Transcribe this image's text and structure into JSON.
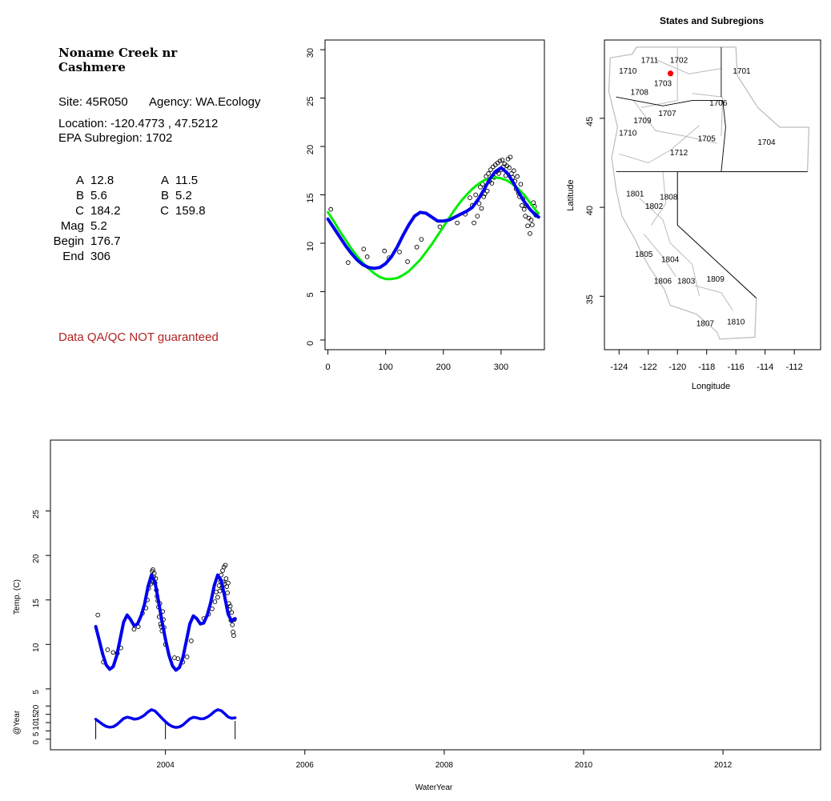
{
  "site": {
    "title_line1": "Noname Creek nr",
    "title_line2": "Cashmere",
    "site_text": "Site: 45R050",
    "agency_text": "Agency: WA.Ecology",
    "location_text": "Location: -120.4773 , 47.5212",
    "subregion_text": "EPA Subregion: 1702",
    "warning": "Data QA/QC NOT guaranteed"
  },
  "params": {
    "left": [
      {
        "label": "A",
        "value": "12.8"
      },
      {
        "label": "B",
        "value": "5.6"
      },
      {
        "label": "C",
        "value": "184.2"
      },
      {
        "label": "Mag",
        "value": "5.2"
      },
      {
        "label": "Begin",
        "value": "176.7"
      },
      {
        "label": "End",
        "value": "306"
      }
    ],
    "right": [
      {
        "label": "A",
        "value": "11.5"
      },
      {
        "label": "B",
        "value": "5.2"
      },
      {
        "label": "C",
        "value": "159.8"
      }
    ]
  },
  "colors": {
    "sine_fit": "#00ee00",
    "smooth_fit": "#0000ee",
    "points": "#000000",
    "site_marker": "#ff0000",
    "boundary": "#bbbbbb",
    "warning": "#b22222"
  },
  "map": {
    "title": "States and Subregions",
    "xlabel": "Longitude",
    "ylabel": "Latitude",
    "xticks": [
      "-124",
      "-122",
      "-120",
      "-118",
      "-116",
      "-114",
      "-112"
    ],
    "yticks": [
      "35",
      "40",
      "45"
    ],
    "regions": [
      {
        "code": "1711",
        "lon": -121.9,
        "lat": 48.3
      },
      {
        "code": "1702",
        "lon": -119.9,
        "lat": 48.3
      },
      {
        "code": "1710",
        "lon": -123.4,
        "lat": 47.7
      },
      {
        "code": "1701",
        "lon": -115.6,
        "lat": 47.7
      },
      {
        "code": "1703",
        "lon": -121.0,
        "lat": 47.0
      },
      {
        "code": "1708",
        "lon": -122.6,
        "lat": 46.5
      },
      {
        "code": "1706",
        "lon": -117.2,
        "lat": 45.9
      },
      {
        "code": "1707",
        "lon": -120.7,
        "lat": 45.3
      },
      {
        "code": "1709",
        "lon": -122.4,
        "lat": 44.9
      },
      {
        "code": "1710",
        "lon": -123.4,
        "lat": 44.2
      },
      {
        "code": "1705",
        "lon": -118.0,
        "lat": 43.9
      },
      {
        "code": "1704",
        "lon": -113.9,
        "lat": 43.7
      },
      {
        "code": "1712",
        "lon": -119.9,
        "lat": 43.1
      },
      {
        "code": "1801",
        "lon": -122.9,
        "lat": 40.8
      },
      {
        "code": "1808",
        "lon": -120.6,
        "lat": 40.6
      },
      {
        "code": "1802",
        "lon": -121.6,
        "lat": 40.1
      },
      {
        "code": "1805",
        "lon": -122.3,
        "lat": 37.4
      },
      {
        "code": "1804",
        "lon": -120.5,
        "lat": 37.1
      },
      {
        "code": "1806",
        "lon": -121.0,
        "lat": 35.9
      },
      {
        "code": "1803",
        "lon": -119.4,
        "lat": 35.9
      },
      {
        "code": "1809",
        "lon": -117.4,
        "lat": 36.0
      },
      {
        "code": "1810",
        "lon": -116.0,
        "lat": 33.6
      },
      {
        "code": "1807",
        "lon": -118.1,
        "lat": 33.5
      }
    ],
    "site": {
      "lon": -120.4773,
      "lat": 47.5212
    }
  },
  "chart_data": [
    {
      "type": "scatter",
      "title": "",
      "xlabel": "",
      "ylabel": "",
      "xlim": [
        -5,
        375
      ],
      "ylim": [
        -1,
        31
      ],
      "xticks": [
        "0",
        "100",
        "200",
        "300"
      ],
      "yticks": [
        "0",
        "5",
        "10",
        "15",
        "20",
        "25",
        "30"
      ],
      "points": {
        "x": [
          5,
          35,
          62,
          68,
          98,
          106,
          124,
          138,
          154,
          162,
          194,
          224,
          238,
          246,
          250,
          253,
          256,
          259,
          262,
          264,
          266,
          268,
          270,
          272,
          274,
          276,
          278,
          280,
          282,
          284,
          286,
          288,
          290,
          292,
          294,
          296,
          298,
          300,
          302,
          304,
          306,
          308,
          310,
          312,
          314,
          316,
          318,
          320,
          322,
          324,
          326,
          328,
          330,
          332,
          334,
          336,
          338,
          340,
          342,
          344,
          346,
          348,
          350,
          352,
          354,
          356,
          358,
          360,
          362
        ],
        "y": [
          13.5,
          8.0,
          9.4,
          8.6,
          9.2,
          8.5,
          9.1,
          8.1,
          9.6,
          10.4,
          11.7,
          12.1,
          13.0,
          14.7,
          13.9,
          12.1,
          15.0,
          12.8,
          14.1,
          15.8,
          13.6,
          16.1,
          14.8,
          15.1,
          16.9,
          15.4,
          17.2,
          16.4,
          17.6,
          16.2,
          17.9,
          16.8,
          18.1,
          17.4,
          18.3,
          17.2,
          18.5,
          17.6,
          18.6,
          17.9,
          18.2,
          17.0,
          18.0,
          18.7,
          17.8,
          18.9,
          17.2,
          16.8,
          17.5,
          16.4,
          15.6,
          16.9,
          15.2,
          14.8,
          16.1,
          13.9,
          14.6,
          13.5,
          12.8,
          13.9,
          11.8,
          12.6,
          11.0,
          12.4,
          11.9,
          14.2,
          13.8,
          12.9,
          13.1
        ]
      },
      "series": [
        {
          "name": "",
          "color": "#00ee00",
          "x": [
            0,
            10,
            20,
            30,
            40,
            50,
            60,
            70,
            80,
            90,
            100,
            110,
            120,
            130,
            140,
            150,
            160,
            170,
            180,
            190,
            200,
            210,
            220,
            230,
            240,
            250,
            260,
            270,
            280,
            290,
            300,
            310,
            320,
            330,
            340,
            350,
            360,
            365
          ],
          "y": [
            13.2,
            12.3,
            11.3,
            10.4,
            9.5,
            8.7,
            8.0,
            7.4,
            6.9,
            6.5,
            6.3,
            6.3,
            6.4,
            6.7,
            7.1,
            7.7,
            8.3,
            9.1,
            9.9,
            10.8,
            11.7,
            12.6,
            13.5,
            14.3,
            15.0,
            15.6,
            16.1,
            16.5,
            16.7,
            16.8,
            16.7,
            16.5,
            16.1,
            15.6,
            15.0,
            14.2,
            13.4,
            13.1
          ]
        },
        {
          "name": "",
          "color": "#0000ee",
          "x": [
            0,
            10,
            20,
            30,
            40,
            50,
            60,
            70,
            80,
            90,
            100,
            110,
            120,
            130,
            140,
            150,
            160,
            170,
            180,
            190,
            200,
            210,
            220,
            230,
            240,
            250,
            260,
            270,
            280,
            290,
            300,
            310,
            320,
            330,
            340,
            350,
            360,
            365
          ],
          "y": [
            12.5,
            11.6,
            10.7,
            9.8,
            9.0,
            8.3,
            7.8,
            7.5,
            7.4,
            7.5,
            7.9,
            8.6,
            9.6,
            10.8,
            11.9,
            12.8,
            13.2,
            13.1,
            12.7,
            12.3,
            12.3,
            12.4,
            12.7,
            13.0,
            13.3,
            13.7,
            14.5,
            15.5,
            16.6,
            17.4,
            17.8,
            17.3,
            16.4,
            15.3,
            14.3,
            13.5,
            12.9,
            12.7
          ]
        }
      ]
    },
    {
      "type": "scatter",
      "title": "",
      "xlabel": "WaterYear",
      "ylabel": "Temp. (C)",
      "xlim": [
        2002.35,
        2013.4
      ],
      "ylim": [
        4,
        30
      ],
      "xticks": [
        "2004",
        "2006",
        "2008",
        "2010",
        "2012"
      ],
      "yticks": [
        "5",
        "10",
        "15",
        "20",
        "25"
      ],
      "points": {
        "x": [
          2003.03,
          2003.11,
          2003.17,
          2003.25,
          2003.31,
          2003.36,
          2003.55,
          2003.61,
          2003.67,
          2003.72,
          2003.74,
          2003.76,
          2003.78,
          2003.79,
          2003.8,
          2003.81,
          2003.82,
          2003.83,
          2003.84,
          2003.85,
          2003.86,
          2003.87,
          2003.88,
          2003.89,
          2003.9,
          2003.91,
          2003.92,
          2003.93,
          2003.94,
          2003.95,
          2003.96,
          2003.97,
          2003.98,
          2004.0,
          2004.13,
          2004.18,
          2004.25,
          2004.31,
          2004.37,
          2004.55,
          2004.62,
          2004.67,
          2004.71,
          2004.73,
          2004.75,
          2004.77,
          2004.78,
          2004.79,
          2004.8,
          2004.81,
          2004.82,
          2004.83,
          2004.84,
          2004.85,
          2004.86,
          2004.87,
          2004.88,
          2004.89,
          2004.9,
          2004.91,
          2004.92,
          2004.93,
          2004.94,
          2004.95,
          2004.96,
          2004.97,
          2004.98,
          2004.99
        ],
        "y": [
          13.3,
          8.0,
          9.4,
          9.1,
          9.0,
          9.6,
          11.7,
          12.0,
          13.5,
          14.1,
          15.0,
          16.3,
          17.0,
          16.8,
          17.5,
          18.2,
          18.4,
          17.6,
          18.0,
          16.9,
          17.4,
          16.1,
          15.4,
          14.9,
          14.2,
          13.1,
          14.6,
          12.3,
          12.0,
          11.5,
          13.7,
          12.8,
          11.9,
          10.0,
          8.5,
          8.4,
          8.0,
          8.6,
          10.4,
          12.9,
          13.4,
          14.0,
          14.8,
          15.9,
          15.3,
          16.6,
          16.0,
          17.1,
          17.8,
          16.4,
          18.3,
          17.0,
          18.7,
          16.8,
          18.9,
          17.4,
          16.5,
          15.8,
          16.9,
          14.6,
          13.9,
          14.3,
          12.7,
          13.6,
          12.2,
          11.4,
          11.0,
          12.8
        ]
      },
      "series": [
        {
          "name": "",
          "color": "#0000ee",
          "x": [
            2003.0,
            2003.05,
            2003.1,
            2003.15,
            2003.2,
            2003.25,
            2003.3,
            2003.35,
            2003.4,
            2003.45,
            2003.5,
            2003.55,
            2003.6,
            2003.65,
            2003.7,
            2003.75,
            2003.8,
            2003.85,
            2003.9,
            2003.95,
            2004.0,
            2004.05,
            2004.1,
            2004.15,
            2004.2,
            2004.25,
            2004.3,
            2004.35,
            2004.4,
            2004.45,
            2004.5,
            2004.55,
            2004.6,
            2004.65,
            2004.7,
            2004.75,
            2004.8,
            2004.85,
            2004.9,
            2004.95,
            2005.0
          ],
          "y": [
            12.0,
            10.5,
            8.9,
            7.7,
            7.2,
            7.5,
            8.7,
            10.6,
            12.5,
            13.3,
            12.8,
            12.1,
            12.3,
            13.2,
            14.5,
            16.5,
            17.8,
            17.0,
            14.9,
            12.6,
            10.6,
            8.8,
            7.6,
            7.1,
            7.4,
            8.5,
            10.4,
            12.3,
            13.2,
            12.9,
            12.3,
            12.4,
            13.3,
            14.7,
            16.6,
            17.8,
            17.2,
            15.4,
            13.4,
            12.6,
            12.9
          ]
        }
      ]
    },
    {
      "type": "line",
      "title": "",
      "xlabel": "",
      "ylabel": "@Year",
      "xlim": [
        2002.35,
        2013.4
      ],
      "ylim": [
        -3,
        24
      ],
      "xticks": [],
      "yticks": [
        "0",
        "5",
        "10",
        "15",
        "20"
      ],
      "year_marks": [
        2003.0,
        2004.0,
        2005.0
      ],
      "series": [
        {
          "name": "",
          "color": "#0000ee",
          "x": [
            2003.0,
            2003.05,
            2003.1,
            2003.15,
            2003.2,
            2003.25,
            2003.3,
            2003.35,
            2003.4,
            2003.45,
            2003.5,
            2003.55,
            2003.6,
            2003.65,
            2003.7,
            2003.75,
            2003.8,
            2003.85,
            2003.9,
            2003.95,
            2004.0,
            2004.05,
            2004.1,
            2004.15,
            2004.2,
            2004.25,
            2004.3,
            2004.35,
            2004.4,
            2004.45,
            2004.5,
            2004.55,
            2004.6,
            2004.65,
            2004.7,
            2004.75,
            2004.8,
            2004.85,
            2004.9,
            2004.95,
            2005.0
          ],
          "y": [
            12.0,
            10.5,
            8.9,
            7.7,
            7.2,
            7.5,
            8.7,
            10.6,
            12.5,
            13.3,
            12.8,
            12.1,
            12.3,
            13.2,
            14.5,
            16.5,
            17.8,
            17.0,
            14.9,
            12.6,
            10.6,
            8.8,
            7.6,
            7.1,
            7.4,
            8.5,
            10.4,
            12.3,
            13.2,
            12.9,
            12.3,
            12.4,
            13.3,
            14.7,
            16.6,
            17.8,
            17.2,
            15.4,
            13.4,
            12.6,
            12.9
          ]
        }
      ]
    }
  ]
}
